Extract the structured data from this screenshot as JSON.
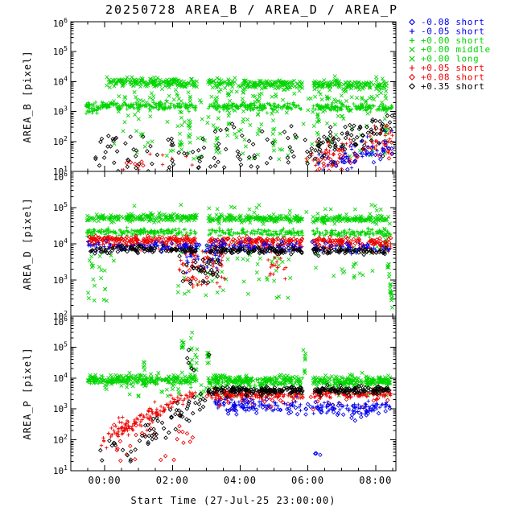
{
  "title": "20250728 AREA_B / AREA_D / AREA_P",
  "x_axis": {
    "label": "Start Time (27-Jul-25 23:00:00)",
    "range_hours": [
      -1.0,
      8.6
    ],
    "major_ticks": [
      {
        "t": 0,
        "label": "00:00"
      },
      {
        "t": 2,
        "label": "02:00"
      },
      {
        "t": 4,
        "label": "04:00"
      },
      {
        "t": 6,
        "label": "06:00"
      },
      {
        "t": 8,
        "label": "08:00"
      }
    ],
    "minor_tick_step_hours": 0.5
  },
  "colors": {
    "blue": "#0000ee",
    "green": "#00d500",
    "red": "#ee0000",
    "black": "#000000",
    "background": "#ffffff",
    "axis": "#000000"
  },
  "legend": {
    "entries": [
      {
        "marker": "diamond",
        "color_key": "blue",
        "label": "-0.08 short"
      },
      {
        "marker": "plus",
        "color_key": "blue",
        "label": "-0.05 short"
      },
      {
        "marker": "plus",
        "color_key": "green",
        "label": "+0.00 short"
      },
      {
        "marker": "cross",
        "color_key": "green",
        "label": "+0.00 middle"
      },
      {
        "marker": "cross",
        "color_key": "green",
        "label": "+0.00 long"
      },
      {
        "marker": "plus",
        "color_key": "red",
        "label": "+0.05 short"
      },
      {
        "marker": "diamond",
        "color_key": "red",
        "label": "+0.08 short"
      },
      {
        "marker": "diamond",
        "color_key": "black",
        "label": "+0.35 short"
      }
    ]
  },
  "chart_data": {
    "type": "scatter",
    "x_unit": "hours since 28-Jul-25 00:00",
    "y_scale": "log10",
    "data_gaps_hours": [
      [
        2.72,
        3.05
      ],
      [
        5.85,
        6.15
      ]
    ],
    "panels": [
      {
        "name": "AREA_B",
        "ylabel": "AREA_B [pixel]",
        "ylim_log10": [
          1,
          6
        ],
        "y_ticks_log10": [
          1,
          2,
          3,
          4,
          5,
          6
        ],
        "series": [
          {
            "legend_label": "+0.00 short",
            "marker": "plus",
            "color_key": "green",
            "clusters": [
              {
                "t0": -0.55,
                "t1": 8.5,
                "count": 550,
                "log_start": 3.2,
                "log_end": 3.12,
                "spread": 0.06,
                "respect_gaps": true
              },
              {
                "t0": -0.55,
                "t1": -0.1,
                "count": 22,
                "log_start": 2.95,
                "log_end": 3.15,
                "spread": 0.08
              }
            ]
          },
          {
            "legend_label": "+0.00 middle",
            "marker": "cross",
            "color_key": "green",
            "clusters": [
              {
                "t0": 0.05,
                "t1": 8.35,
                "count": 500,
                "log_start": 3.98,
                "log_end": 3.88,
                "spread": 0.08,
                "respect_gaps": true
              },
              {
                "t0": 0.3,
                "t1": 8.3,
                "count": 55,
                "uniform": true,
                "log_min": 3.3,
                "log_max": 3.8
              }
            ]
          },
          {
            "legend_label": "+0.00 long",
            "marker": "cross",
            "color_key": "green",
            "clusters": [
              {
                "t0": 0.1,
                "t1": 8.3,
                "count": 130,
                "uniform": true,
                "log_min": 1.3,
                "log_max": 3.6
              }
            ],
            "columns": [
              {
                "t": 2.25,
                "count": 12,
                "log_min": 1.6,
                "log_max": 3.8
              },
              {
                "t": 2.5,
                "count": 10,
                "log_min": 2.0,
                "log_max": 3.8
              },
              {
                "t": 3.3,
                "count": 12,
                "log_min": 1.5,
                "log_max": 3.9
              },
              {
                "t": 3.65,
                "count": 10,
                "log_min": 2.2,
                "log_max": 3.8
              },
              {
                "t": 4.1,
                "count": 10,
                "log_min": 1.8,
                "log_max": 3.8
              },
              {
                "t": 4.55,
                "count": 8,
                "log_min": 2.0,
                "log_max": 3.7
              },
              {
                "t": 5.0,
                "count": 10,
                "log_min": 1.5,
                "log_max": 3.8
              },
              {
                "t": 6.3,
                "count": 12,
                "log_min": 1.2,
                "log_max": 3.9
              },
              {
                "t": 8.3,
                "count": 14,
                "log_min": 1.5,
                "log_max": 4.05
              }
            ]
          },
          {
            "legend_label": "+0.05 short",
            "marker": "plus",
            "color_key": "red",
            "clusters": [
              {
                "t0": 5.95,
                "t1": 8.5,
                "count": 70,
                "log_start": 1.35,
                "log_end": 2.2,
                "spread": 0.28
              },
              {
                "t0": 0.3,
                "t1": 2.6,
                "count": 8,
                "uniform": true,
                "log_min": 1.0,
                "log_max": 1.6
              }
            ]
          },
          {
            "legend_label": "+0.08 short",
            "marker": "diamond",
            "color_key": "red",
            "clusters": [
              {
                "t0": 6.2,
                "t1": 8.5,
                "count": 45,
                "log_start": 1.15,
                "log_end": 1.95,
                "spread": 0.28
              },
              {
                "t0": 0.4,
                "t1": 1.3,
                "count": 6,
                "uniform": true,
                "log_min": 1.05,
                "log_max": 1.5
              }
            ]
          },
          {
            "legend_label": "-0.05 short",
            "marker": "plus",
            "color_key": "blue",
            "clusters": [
              {
                "t0": 6.3,
                "t1": 8.5,
                "count": 40,
                "log_start": 1.25,
                "log_end": 2.0,
                "spread": 0.25
              }
            ]
          },
          {
            "legend_label": "-0.08 short",
            "marker": "diamond",
            "color_key": "blue",
            "clusters": [
              {
                "t0": 6.3,
                "t1": 8.5,
                "count": 32,
                "log_start": 1.05,
                "log_end": 1.7,
                "spread": 0.25
              }
            ]
          },
          {
            "legend_label": "+0.35 short",
            "marker": "diamond",
            "color_key": "black",
            "clusters": [
              {
                "t0": -0.3,
                "t1": 3.2,
                "count": 55,
                "uniform": true,
                "log_min": 1.0,
                "log_max": 2.2
              },
              {
                "t0": 3.2,
                "t1": 5.8,
                "count": 40,
                "uniform": true,
                "log_min": 1.0,
                "log_max": 2.6
              },
              {
                "t0": 5.9,
                "t1": 8.5,
                "count": 85,
                "log_start": 1.7,
                "log_end": 2.45,
                "spread": 0.3
              }
            ]
          }
        ]
      },
      {
        "name": "AREA_D",
        "ylabel": "AREA_D [pixel]",
        "ylim_log10": [
          2,
          6
        ],
        "y_ticks_log10": [
          2,
          3,
          4,
          5,
          6
        ],
        "series": [
          {
            "legend_label": "+0.00 middle",
            "marker": "cross",
            "color_key": "green",
            "clusters": [
              {
                "t0": -0.55,
                "t1": 8.45,
                "count": 500,
                "log_start": 4.73,
                "log_end": 4.67,
                "spread": 0.05,
                "respect_gaps": true
              },
              {
                "t0": 0,
                "t1": 8.2,
                "count": 25,
                "uniform": true,
                "log_min": 4.8,
                "log_max": 5.1
              },
              {
                "t0": 8.25,
                "t1": 8.5,
                "count": 40,
                "log_start": 4.55,
                "log_end": 2.2,
                "spread": 0.12
              }
            ]
          },
          {
            "legend_label": "+0.00 short",
            "marker": "plus",
            "color_key": "green",
            "clusters": [
              {
                "t0": -0.55,
                "t1": 8.45,
                "count": 420,
                "log_start": 4.34,
                "log_end": 4.29,
                "spread": 0.05,
                "respect_gaps": true
              }
            ]
          },
          {
            "legend_label": "+0.00 long",
            "marker": "cross",
            "color_key": "green",
            "clusters": [
              {
                "t0": -0.5,
                "t1": 0.3,
                "count": 25,
                "uniform": true,
                "log_min": 2.4,
                "log_max": 3.9
              },
              {
                "t0": 2.1,
                "t1": 5.6,
                "count": 55,
                "uniform": true,
                "log_min": 2.5,
                "log_max": 4.1
              },
              {
                "t0": 6.2,
                "t1": 8.2,
                "count": 18,
                "uniform": true,
                "log_min": 3.0,
                "log_max": 4.0
              }
            ]
          },
          {
            "legend_label": "+0.08 short",
            "marker": "diamond",
            "color_key": "red",
            "clusters": [
              {
                "t0": -0.5,
                "t1": 8.45,
                "count": 340,
                "log_start": 4.12,
                "log_end": 4.05,
                "spread": 0.05,
                "respect_gaps": true
              },
              {
                "t0": 2.2,
                "t1": 3.6,
                "count": 30,
                "uniform": true,
                "log_min": 3.0,
                "log_max": 3.9
              }
            ]
          },
          {
            "legend_label": "+0.05 short",
            "marker": "plus",
            "color_key": "red",
            "clusters": [
              {
                "t0": -0.5,
                "t1": 8.45,
                "count": 200,
                "log_start": 3.97,
                "log_end": 3.9,
                "spread": 0.07,
                "respect_gaps": true
              },
              {
                "t0": 2.2,
                "t1": 3.6,
                "count": 45,
                "uniform": true,
                "log_min": 2.8,
                "log_max": 3.8
              },
              {
                "t0": 4.8,
                "t1": 5.4,
                "count": 18,
                "uniform": true,
                "log_min": 3.0,
                "log_max": 3.8
              }
            ]
          },
          {
            "legend_label": "-0.05 short",
            "marker": "plus",
            "color_key": "blue",
            "clusters": [
              {
                "t0": -0.5,
                "t1": 8.45,
                "count": 240,
                "log_start": 3.93,
                "log_end": 3.87,
                "spread": 0.06,
                "respect_gaps": true
              },
              {
                "t0": 2.3,
                "t1": 3.4,
                "count": 25,
                "uniform": true,
                "log_min": 3.2,
                "log_max": 3.8
              }
            ]
          },
          {
            "legend_label": "-0.08 short",
            "marker": "diamond",
            "color_key": "blue",
            "clusters": [
              {
                "t0": 0,
                "t1": 8.4,
                "count": 55,
                "log_start": 3.97,
                "log_end": 3.93,
                "spread": 0.07
              }
            ]
          },
          {
            "legend_label": "+0.35 short",
            "marker": "diamond",
            "color_key": "black",
            "clusters": [
              {
                "t0": -0.5,
                "t1": 8.45,
                "count": 280,
                "log_start": 3.84,
                "log_end": 3.79,
                "spread": 0.05,
                "respect_gaps": true
              },
              {
                "t0": 2.2,
                "t1": 3.4,
                "count": 35,
                "uniform": true,
                "log_min": 2.9,
                "log_max": 3.7
              }
            ]
          }
        ]
      },
      {
        "name": "AREA_P",
        "ylabel": "AREA_P [pixel]",
        "ylim_log10": [
          1,
          6
        ],
        "y_ticks_log10": [
          1,
          2,
          3,
          4,
          5,
          6
        ],
        "series": [
          {
            "legend_label": "+0.00 middle",
            "marker": "cross",
            "color_key": "green",
            "clusters": [
              {
                "t0": -0.5,
                "t1": 8.45,
                "count": 520,
                "log_start": 3.97,
                "log_end": 3.9,
                "spread": 0.08,
                "respect_gaps": true
              },
              {
                "t0": 0,
                "t1": 8.4,
                "count": 65,
                "uniform": true,
                "log_min": 3.4,
                "log_max": 3.8
              }
            ],
            "columns": [
              {
                "t": 1.15,
                "count": 5,
                "log_min": 4.1,
                "log_max": 4.6
              },
              {
                "t": 2.3,
                "count": 8,
                "log_min": 4.1,
                "log_max": 5.3
              },
              {
                "t": 2.55,
                "count": 10,
                "log_min": 4.1,
                "log_max": 5.5
              },
              {
                "t": 2.7,
                "count": 6,
                "log_min": 4.2,
                "log_max": 5.0
              },
              {
                "t": 3.05,
                "count": 8,
                "log_min": 4.0,
                "log_max": 4.9
              },
              {
                "t": 5.9,
                "count": 8,
                "log_min": 4.1,
                "log_max": 5.0
              }
            ]
          },
          {
            "legend_label": "+0.00 short",
            "marker": "plus",
            "color_key": "green",
            "clusters": [
              {
                "t0": -0.5,
                "t1": 8.45,
                "count": 240,
                "log_start": 3.9,
                "log_end": 3.85,
                "spread": 0.07,
                "respect_gaps": true
              }
            ]
          },
          {
            "legend_label": "+0.05 short",
            "marker": "plus",
            "color_key": "red",
            "clusters": [
              {
                "t0": -0.1,
                "t1": 2.4,
                "count": 130,
                "log_start": 2.05,
                "log_end": 3.4,
                "spread": 0.16
              },
              {
                "t0": 2.4,
                "t1": 8.45,
                "count": 320,
                "log_start": 3.45,
                "log_end": 3.5,
                "spread": 0.07,
                "respect_gaps": true
              }
            ]
          },
          {
            "legend_label": "+0.08 short",
            "marker": "diamond",
            "color_key": "red",
            "clusters": [
              {
                "t0": 0.2,
                "t1": 2.6,
                "count": 28,
                "uniform": true,
                "log_min": 1.3,
                "log_max": 2.6
              },
              {
                "t0": 3.0,
                "t1": 8.4,
                "count": 40,
                "log_start": 3.3,
                "log_end": 3.3,
                "spread": 0.15
              }
            ]
          },
          {
            "legend_label": "-0.05 short",
            "marker": "plus",
            "color_key": "blue",
            "clusters": [
              {
                "t0": 3.1,
                "t1": 8.45,
                "count": 150,
                "log_start": 3.15,
                "log_end": 3.05,
                "spread": 0.1,
                "respect_gaps": true
              }
            ]
          },
          {
            "legend_label": "-0.08 short",
            "marker": "diamond",
            "color_key": "blue",
            "clusters": [
              {
                "t0": 3.3,
                "t1": 8.45,
                "count": 80,
                "log_start": 3.02,
                "log_end": 2.95,
                "spread": 0.12
              },
              {
                "t0": 6.2,
                "t1": 6.45,
                "count": 3,
                "uniform": true,
                "log_min": 1.4,
                "log_max": 1.75
              }
            ]
          },
          {
            "legend_label": "+0.35 short",
            "marker": "diamond",
            "color_key": "black",
            "clusters": [
              {
                "t0": -0.2,
                "t1": 1.1,
                "count": 14,
                "uniform": true,
                "log_min": 1.05,
                "log_max": 2.0
              },
              {
                "t0": 1.0,
                "t1": 3.0,
                "count": 50,
                "log_start": 2.0,
                "log_end": 3.4,
                "spread": 0.22
              },
              {
                "t0": 2.4,
                "t1": 3.2,
                "count": 6,
                "uniform": true,
                "log_min": 4.2,
                "log_max": 5.0
              },
              {
                "t0": 3.0,
                "t1": 8.45,
                "count": 280,
                "log_start": 3.58,
                "log_end": 3.62,
                "spread": 0.06,
                "respect_gaps": true
              }
            ]
          }
        ]
      }
    ]
  }
}
